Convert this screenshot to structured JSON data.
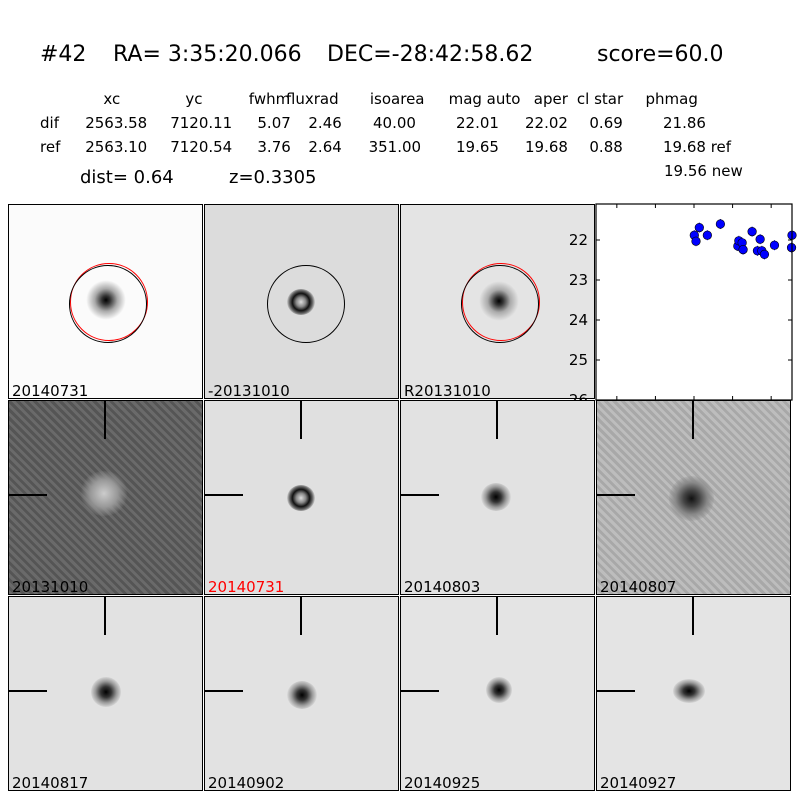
{
  "header": {
    "id": "#42",
    "ra": "RA= 3:35:20.066",
    "dec": "DEC=-28:42:58.62",
    "score": "score=60.0"
  },
  "table": {
    "columns": [
      "xc",
      "yc",
      "fwhm",
      "fluxrad",
      "isoarea",
      "mag auto",
      "aper",
      "cl star",
      "phmag"
    ],
    "rows": [
      {
        "label": "dif",
        "values": [
          "2563.58",
          "7120.11",
          "5.07",
          "2.46",
          "40.00",
          "22.01",
          "22.02",
          "0.69",
          "21.86"
        ]
      },
      {
        "label": "ref",
        "values": [
          "2563.10",
          "7120.54",
          "3.76",
          "2.64",
          "351.00",
          "19.65",
          "19.68",
          "0.88",
          "19.68 ref"
        ]
      }
    ],
    "extra_phmag": "19.56 new"
  },
  "dist": "dist=  0.64",
  "z": "z=0.3305",
  "stamps": [
    {
      "label": "20140731",
      "label_color": "#000000"
    },
    {
      "label": "-20131010",
      "label_color": "#000000"
    },
    {
      "label": "R20131010",
      "label_color": "#000000"
    },
    {
      "label": "20131010",
      "label_color": "#000000"
    },
    {
      "label": "20140731",
      "label_color": "#ff0000"
    },
    {
      "label": "20140803",
      "label_color": "#000000"
    },
    {
      "label": "20140807",
      "label_color": "#000000"
    },
    {
      "label": "20140817",
      "label_color": "#000000"
    },
    {
      "label": "20140902",
      "label_color": "#000000"
    },
    {
      "label": "20140925",
      "label_color": "#000000"
    },
    {
      "label": "20140927",
      "label_color": "#000000"
    }
  ],
  "chart_data": {
    "type": "scatter",
    "xlim": [
      -127,
      127
    ],
    "ylim": [
      26,
      21.1
    ],
    "y_inverted": true,
    "xticks": [
      "-100",
      "-50",
      "0",
      "50",
      "100"
    ],
    "xtick_values": [
      -100,
      -50,
      0,
      50,
      100
    ],
    "yticks": [
      "22",
      "23",
      "24",
      "25",
      "26"
    ],
    "ytick_values": [
      22,
      23,
      24,
      25,
      26
    ],
    "marker_color": "#0000ff",
    "x": [
      0.4,
      2.6,
      6.9,
      17.3,
      34.2,
      56.8,
      58.1,
      62.4,
      63.6,
      75.3,
      82.2,
      85.7,
      87.9,
      91.3,
      104.3,
      126.4,
      127
    ],
    "y": [
      21.88,
      22.03,
      21.69,
      21.88,
      21.6,
      22.15,
      22.02,
      22.07,
      22.24,
      21.79,
      22.27,
      21.98,
      22.27,
      22.36,
      22.13,
      22.19,
      21.88
    ]
  }
}
